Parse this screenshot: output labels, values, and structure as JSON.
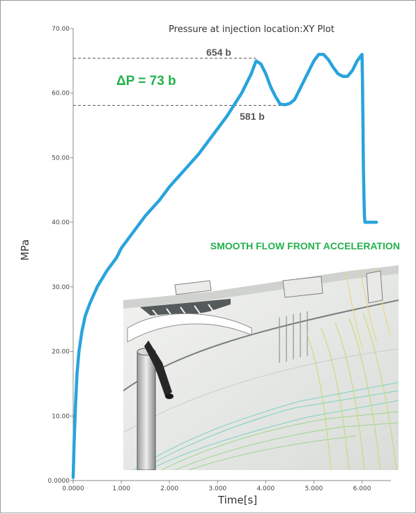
{
  "chart_data": {
    "type": "line",
    "title": "Pressure at injection location:XY Plot",
    "xlabel": "Time[s]",
    "ylabel": "MPa",
    "xlim": [
      0,
      6.6
    ],
    "ylim": [
      0,
      70
    ],
    "x_ticks": [
      "0.0000",
      "1.000",
      "2.000",
      "3.000",
      "4.000",
      "5.000",
      "6.000"
    ],
    "y_ticks": [
      "0.0000",
      "10.00",
      "20.00",
      "30.00",
      "40.00",
      "50.00",
      "60.00",
      "70.00"
    ],
    "grid": false,
    "series": [
      {
        "color": "#2aa3dc",
        "x": [
          0.0,
          0.02,
          0.05,
          0.08,
          0.12,
          0.18,
          0.25,
          0.35,
          0.5,
          0.7,
          0.9,
          1.0,
          1.2,
          1.5,
          1.8,
          2.0,
          2.3,
          2.6,
          2.9,
          3.2,
          3.5,
          3.7,
          3.8,
          3.9,
          4.0,
          4.1,
          4.2,
          4.3,
          4.4,
          4.5,
          4.6,
          4.7,
          4.8,
          4.9,
          5.0,
          5.1,
          5.2,
          5.3,
          5.4,
          5.5,
          5.6,
          5.7,
          5.8,
          5.9,
          6.0,
          6.01,
          6.02,
          6.03,
          6.04,
          6.05,
          6.06,
          6.3
        ],
        "y": [
          0.5,
          6.0,
          12.0,
          16.5,
          20.0,
          23.0,
          25.5,
          27.5,
          30.0,
          32.5,
          34.5,
          36.0,
          38.0,
          41.0,
          43.5,
          45.5,
          48.0,
          50.5,
          53.5,
          56.5,
          60.0,
          63.0,
          65.0,
          64.5,
          63.0,
          61.0,
          59.5,
          58.3,
          58.2,
          58.4,
          59.0,
          60.5,
          62.0,
          63.5,
          65.0,
          66.0,
          66.0,
          65.2,
          64.0,
          63.0,
          62.6,
          62.6,
          63.5,
          65.0,
          66.0,
          62.0,
          55.0,
          48.0,
          44.0,
          41.0,
          40.0,
          40.0
        ]
      }
    ],
    "reference_lines": [
      {
        "y": 65.4,
        "label": "654 b"
      },
      {
        "y": 58.1,
        "label": "581 b"
      }
    ],
    "annotations": {
      "delta": "ΔP = 73 b",
      "flow_note": "SMOOTH FLOW FRONT ACCELERATION"
    }
  }
}
